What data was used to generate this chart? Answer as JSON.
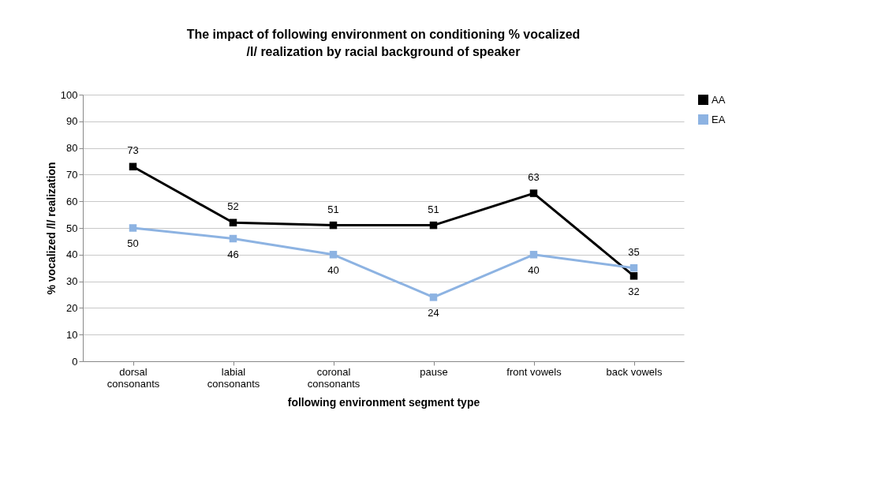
{
  "chart_data": {
    "type": "line",
    "title": "The impact of following environment on conditioning % vocalized /l/ realization by racial background of speaker",
    "xlabel": "following environment segment type",
    "ylabel": "% vocalized /l/ realization",
    "categories": [
      "dorsal consonants",
      "labial consonants",
      "coronal consonants",
      "pause",
      "front vowels",
      "back vowels"
    ],
    "series": [
      {
        "name": "AA",
        "color": "#000000",
        "values": [
          73,
          52,
          51,
          51,
          63,
          32
        ]
      },
      {
        "name": "EA",
        "color": "#8db3e2",
        "values": [
          50,
          46,
          40,
          24,
          40,
          35
        ]
      }
    ],
    "ylim": [
      0,
      100
    ],
    "yticks": [
      0,
      10,
      20,
      30,
      40,
      50,
      60,
      70,
      80,
      90,
      100
    ],
    "grid": "y",
    "legend": "right",
    "marker": "square",
    "line_style": "solid",
    "data_labels": true
  }
}
